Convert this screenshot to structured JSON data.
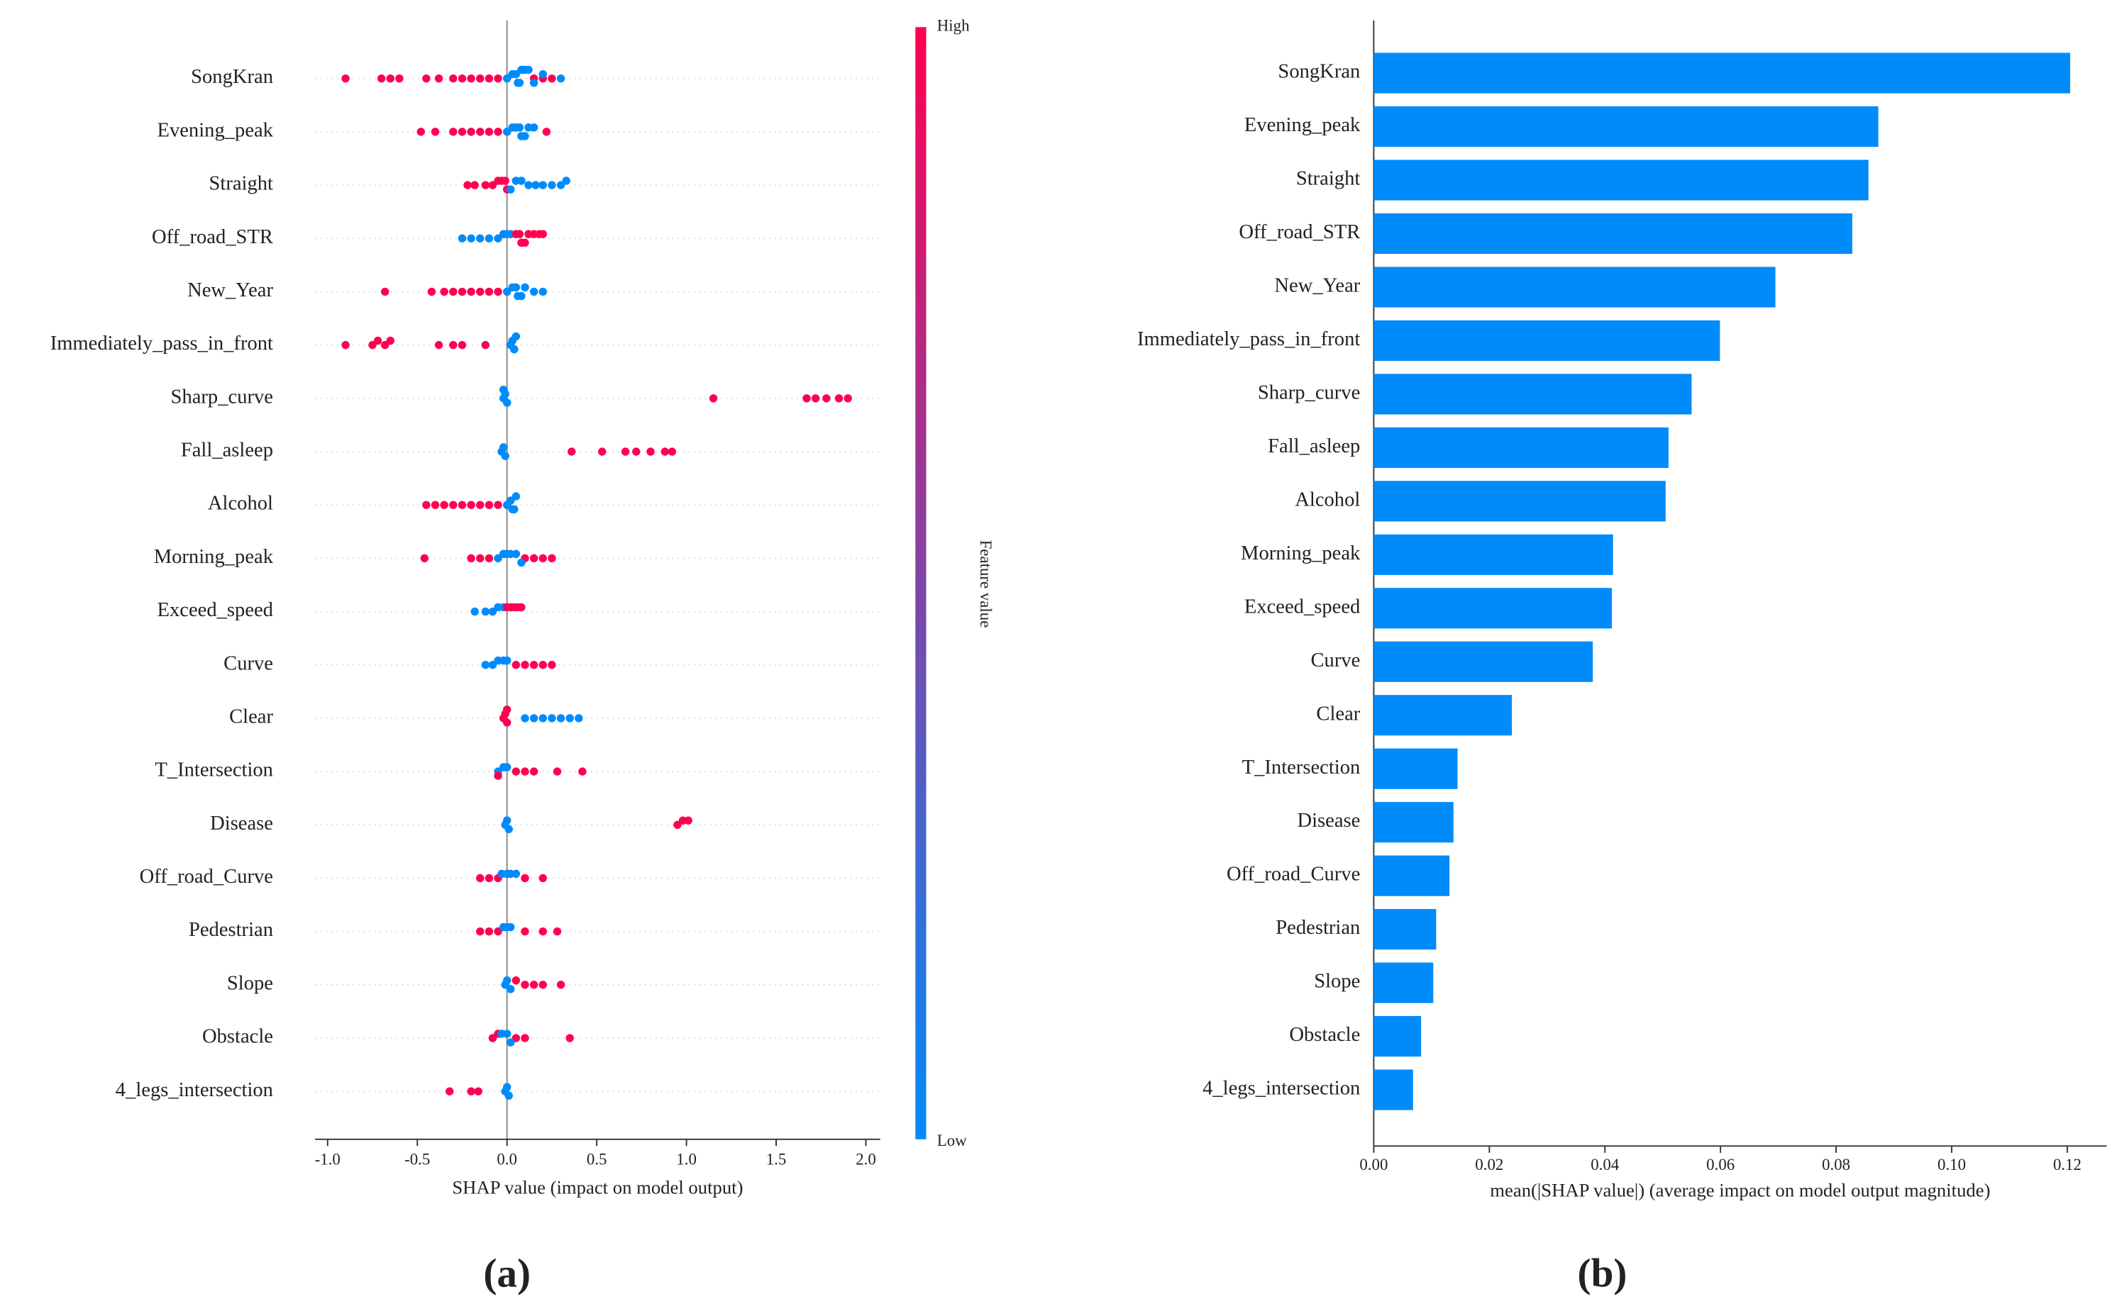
{
  "chart_data": [
    {
      "type": "beeswarm",
      "categories": [
        "SongKran",
        "Evening_peak",
        "Straight",
        "Off_road_STR",
        "New_Year",
        "Immediately_pass_in_front",
        "Sharp_curve",
        "Fall_asleep",
        "Alcohol",
        "Morning_peak",
        "Exceed_speed",
        "Curve",
        "Clear",
        "T_Intersection",
        "Disease",
        "Off_road_Curve",
        "Pedestrian",
        "Slope",
        "Obstacle",
        "4_legs_intersection"
      ],
      "shap_values": [
        [
          -0.9,
          -0.7,
          -0.65,
          -0.6,
          -0.45,
          -0.38,
          -0.3,
          -0.25,
          -0.2,
          -0.15,
          -0.1,
          -0.05,
          0.15,
          0.2,
          0.25,
          0.0,
          0.03,
          0.05,
          0.06,
          0.07,
          0.08,
          0.09,
          0.1,
          0.12,
          0.15,
          0.2,
          0.3
        ],
        [
          -0.48,
          -0.4,
          -0.3,
          -0.25,
          -0.2,
          -0.15,
          -0.1,
          -0.05,
          0.22,
          0.0,
          0.03,
          0.05,
          0.07,
          0.08,
          0.1,
          0.12,
          0.15
        ],
        [
          -0.22,
          -0.18,
          -0.12,
          -0.08,
          -0.05,
          -0.03,
          -0.01,
          0.0,
          0.02,
          0.05,
          0.08,
          0.12,
          0.16,
          0.2,
          0.25,
          0.3,
          0.33
        ],
        [
          -0.25,
          -0.2,
          -0.15,
          -0.1,
          -0.05,
          -0.02,
          0.0,
          0.02,
          0.05,
          0.07,
          0.08,
          0.1,
          0.12,
          0.15,
          0.18,
          0.2
        ],
        [
          -0.68,
          -0.42,
          -0.35,
          -0.3,
          -0.25,
          -0.2,
          -0.15,
          -0.1,
          -0.05,
          0.0,
          0.03,
          0.05,
          0.06,
          0.08,
          0.1,
          0.15,
          0.2
        ],
        [
          -0.9,
          -0.75,
          -0.72,
          -0.68,
          -0.65,
          -0.38,
          -0.3,
          -0.25,
          -0.12,
          0.02,
          0.03,
          0.04,
          0.05
        ],
        [
          -0.02,
          -0.01,
          0.0,
          -0.02,
          1.15,
          1.67,
          1.72,
          1.78,
          1.85,
          1.9
        ],
        [
          -0.03,
          -0.02,
          -0.01,
          0.36,
          0.53,
          0.66,
          0.72,
          0.8,
          0.88,
          0.92
        ],
        [
          -0.45,
          -0.4,
          -0.35,
          -0.3,
          -0.25,
          -0.2,
          -0.15,
          -0.1,
          -0.05,
          0.0,
          0.02,
          0.03,
          0.04,
          0.05
        ],
        [
          -0.46,
          -0.2,
          -0.15,
          -0.1,
          0.1,
          0.15,
          0.2,
          0.25,
          -0.05,
          -0.02,
          0.0,
          0.02,
          0.05,
          0.08
        ],
        [
          -0.18,
          -0.12,
          -0.08,
          -0.05,
          -0.02,
          0.0,
          0.02,
          0.04,
          0.06,
          0.08
        ],
        [
          -0.12,
          -0.08,
          -0.05,
          -0.02,
          0.0,
          0.05,
          0.1,
          0.15,
          0.2,
          0.25
        ],
        [
          -0.02,
          -0.01,
          0.0,
          0.0,
          0.1,
          0.15,
          0.2,
          0.25,
          0.3,
          0.35,
          0.4
        ],
        [
          -0.05,
          -0.02,
          0.0,
          -0.05,
          0.05,
          0.1,
          0.15,
          0.28,
          0.42
        ],
        [
          -0.01,
          0.0,
          0.01,
          0.95,
          0.98,
          1.01
        ],
        [
          -0.15,
          -0.1,
          -0.05,
          0.1,
          0.2,
          -0.03,
          0.0,
          0.02,
          0.05
        ],
        [
          -0.15,
          -0.1,
          -0.05,
          0.1,
          0.2,
          0.28,
          -0.02,
          0.0,
          0.02
        ],
        [
          -0.01,
          0.0,
          0.02,
          0.05,
          0.1,
          0.15,
          0.2,
          0.3
        ],
        [
          -0.08,
          -0.05,
          0.05,
          0.1,
          0.35,
          -0.03,
          0.0,
          0.02
        ],
        [
          -0.32,
          -0.2,
          -0.16,
          -0.01,
          0.0,
          0.01
        ]
      ],
      "feature_values": [
        [
          1,
          1,
          1,
          1,
          1,
          1,
          1,
          1,
          1,
          1,
          1,
          1,
          1,
          1,
          1,
          0,
          0,
          0,
          0,
          0,
          0,
          0,
          0,
          0,
          0,
          0,
          0
        ],
        [
          1,
          1,
          1,
          1,
          1,
          1,
          1,
          1,
          1,
          0,
          0,
          0,
          0,
          0,
          0,
          0,
          0
        ],
        [
          1,
          1,
          1,
          1,
          1,
          1,
          1,
          1,
          0,
          0,
          0,
          0,
          0,
          0,
          0,
          0,
          0
        ],
        [
          0,
          0,
          0,
          0,
          0,
          0,
          0,
          0,
          1,
          1,
          1,
          1,
          1,
          1,
          1,
          1
        ],
        [
          1,
          1,
          1,
          1,
          1,
          1,
          1,
          1,
          1,
          0,
          0,
          0,
          0,
          0,
          0,
          0,
          0
        ],
        [
          1,
          1,
          1,
          1,
          1,
          1,
          1,
          1,
          1,
          0,
          0,
          0,
          0
        ],
        [
          0,
          0,
          0,
          0,
          1,
          1,
          1,
          1,
          1,
          1
        ],
        [
          0,
          0,
          0,
          1,
          1,
          1,
          1,
          1,
          1,
          1
        ],
        [
          1,
          1,
          1,
          1,
          1,
          1,
          1,
          1,
          1,
          0,
          0,
          0,
          0,
          0
        ],
        [
          1,
          1,
          1,
          1,
          1,
          1,
          1,
          1,
          0,
          0,
          0,
          0,
          0,
          0
        ],
        [
          0,
          0,
          0,
          0,
          0,
          1,
          1,
          1,
          1,
          1
        ],
        [
          0,
          0,
          0,
          0,
          0,
          1,
          1,
          1,
          1,
          1
        ],
        [
          1,
          1,
          1,
          1,
          0,
          0,
          0,
          0,
          0,
          0,
          0
        ],
        [
          0,
          0,
          0,
          1,
          1,
          1,
          1,
          1,
          1
        ],
        [
          0,
          0,
          0,
          1,
          1,
          1
        ],
        [
          1,
          1,
          1,
          1,
          1,
          0,
          0,
          0,
          0
        ],
        [
          1,
          1,
          1,
          1,
          1,
          1,
          0,
          0,
          0
        ],
        [
          0,
          0,
          0,
          1,
          1,
          1,
          1,
          1
        ],
        [
          1,
          1,
          1,
          1,
          1,
          0,
          0,
          0
        ],
        [
          1,
          1,
          1,
          0,
          0,
          0
        ]
      ],
      "xlim": [
        -1.07,
        2.08
      ],
      "xticks": [
        {
          "value": -1,
          "label": "-1.0"
        },
        {
          "value": -0.5,
          "label": "-0.5"
        },
        {
          "value": 0,
          "label": "0.0"
        },
        0.5,
        {
          "value": 1,
          "label": "1.0"
        },
        1.5,
        {
          "value": 2,
          "label": "2.0"
        }
      ],
      "xlabel": "SHAP value (impact on model output)",
      "grid": true,
      "colorbar": {
        "title": "Feature value",
        "high_label": "High",
        "low_label": "Low",
        "colors": [
          "#008bfb",
          "#ff0051"
        ]
      },
      "panel_label": "(a)"
    },
    {
      "type": "bar",
      "categories": [
        "SongKran",
        "Evening_peak",
        "Straight",
        "Off_road_STR",
        "New_Year",
        "Immediately_pass_in_front",
        "Sharp_curve",
        "Fall_asleep",
        "Alcohol",
        "Morning_peak",
        "Exceed_speed",
        "Curve",
        "Clear",
        "T_Intersection",
        "Disease",
        "Off_road_Curve",
        "Pedestrian",
        "Slope",
        "Obstacle",
        "4_legs_intersection"
      ],
      "values": [
        0.1205,
        0.0873,
        0.0856,
        0.0828,
        0.0695,
        0.0599,
        0.055,
        0.051,
        0.0505,
        0.0414,
        0.0412,
        0.0379,
        0.0239,
        0.0145,
        0.0138,
        0.0131,
        0.0108,
        0.0103,
        0.0082,
        0.0068
      ],
      "color": "#008bfb",
      "xlim": [
        0,
        0.1268
      ],
      "xticks": [
        {
          "value": 0,
          "label": "0.00"
        },
        0.02,
        0.04,
        0.06,
        0.08,
        {
          "value": 0.1,
          "label": "0.10"
        },
        0.12
      ],
      "xlabel": "mean(|SHAP value|) (average impact on model output magnitude)",
      "panel_label": "(b)"
    }
  ]
}
